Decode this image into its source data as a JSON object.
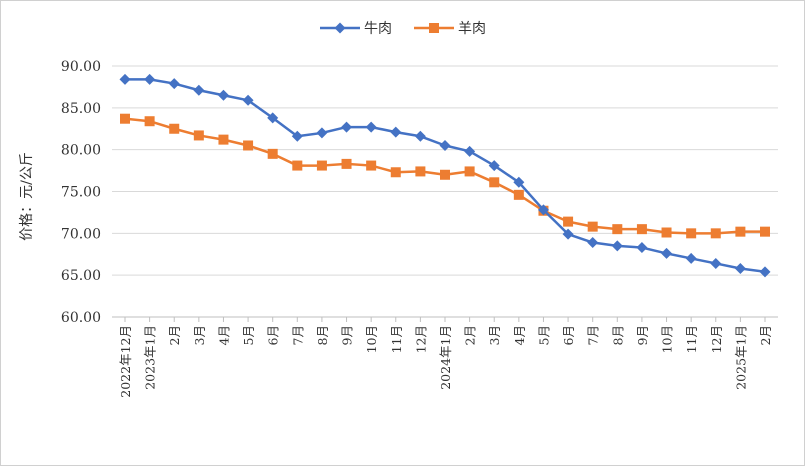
{
  "chart_data": {
    "type": "line",
    "title": "",
    "ylabel": "价格：元/公斤",
    "xlabel": "",
    "ylim": [
      60,
      90
    ],
    "yticks": [
      "60.00",
      "65.00",
      "70.00",
      "75.00",
      "80.00",
      "85.00",
      "90.00"
    ],
    "grid": true,
    "legend_placement": "top",
    "categories": [
      "2022年12月",
      "2023年1月",
      "2月",
      "3月",
      "4月",
      "5月",
      "6月",
      "7月",
      "8月",
      "9月",
      "10月",
      "11月",
      "12月",
      "2024年1月",
      "2月",
      "3月",
      "4月",
      "5月",
      "6月",
      "7月",
      "8月",
      "9月",
      "10月",
      "11月",
      "12月",
      "2025年1月",
      "2月"
    ],
    "series": [
      {
        "name": "牛肉",
        "color": "#4472c4",
        "marker": "diamond",
        "values": [
          88.4,
          88.4,
          87.9,
          87.1,
          86.5,
          85.9,
          83.8,
          81.6,
          82.0,
          82.7,
          82.7,
          82.1,
          81.6,
          80.5,
          79.8,
          78.1,
          76.1,
          72.8,
          69.9,
          68.9,
          68.5,
          68.3,
          67.6,
          67.0,
          66.4,
          65.8,
          65.4
        ]
      },
      {
        "name": "羊肉",
        "color": "#ed7d31",
        "marker": "square",
        "values": [
          83.7,
          83.4,
          82.5,
          81.7,
          81.2,
          80.5,
          79.5,
          78.1,
          78.1,
          78.3,
          78.1,
          77.3,
          77.4,
          77.0,
          77.4,
          76.1,
          74.6,
          72.7,
          71.4,
          70.8,
          70.5,
          70.5,
          70.1,
          70.0,
          70.0,
          70.2,
          70.2
        ]
      }
    ]
  }
}
